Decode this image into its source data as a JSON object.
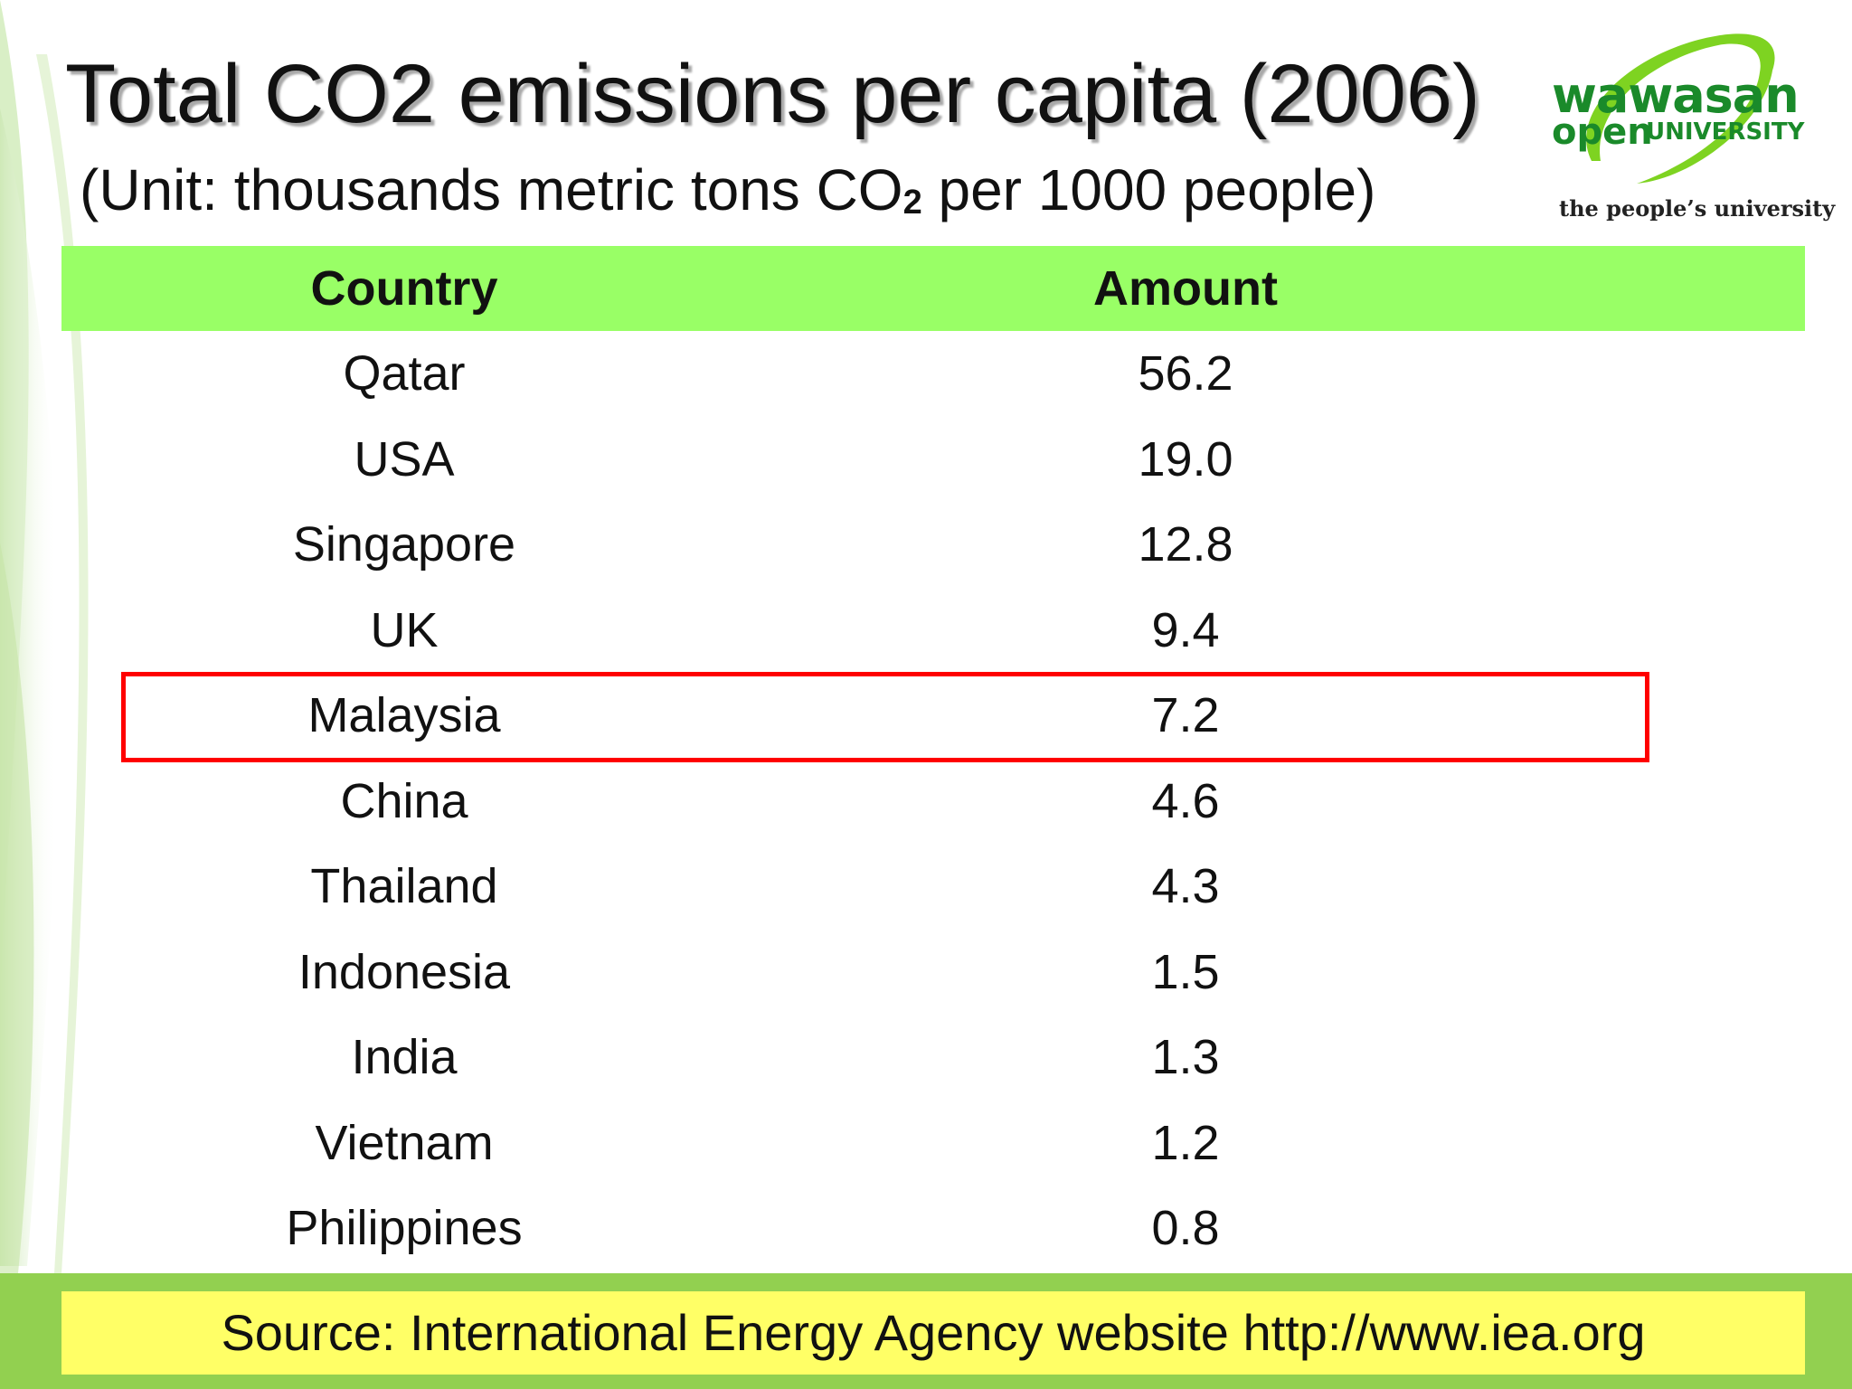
{
  "slide": {
    "title": "Total CO2 emissions per capita (2006)",
    "subtitle_before": "(Unit: thousands metric tons CO",
    "subtitle_sub": "2",
    "subtitle_after": " per 1000 people)",
    "source": "Source: International Energy Agency website http://www.iea.org"
  },
  "logo": {
    "word1": "wawasan",
    "word2": "open",
    "word3": "UNIVERSITY",
    "tagline": "the people’s university"
  },
  "colors": {
    "header_bg": "#99ff66",
    "highlight_border": "#ff0000",
    "source_bg": "#ffff66",
    "footer_band": "#92d050",
    "logo_green": "#1a8a2a"
  },
  "chart_data": {
    "type": "table",
    "columns": [
      "Country",
      "Amount"
    ],
    "rows": [
      [
        "Qatar",
        "56.2"
      ],
      [
        "USA",
        "19.0"
      ],
      [
        "Singapore",
        "12.8"
      ],
      [
        "UK",
        "9.4"
      ],
      [
        "Malaysia",
        "7.2"
      ],
      [
        "China",
        "4.6"
      ],
      [
        "Thailand",
        "4.3"
      ],
      [
        "Indonesia",
        "1.5"
      ],
      [
        "India",
        "1.3"
      ],
      [
        "Vietnam",
        "1.2"
      ],
      [
        "Philippines",
        "0.8"
      ]
    ],
    "highlighted_row": "Malaysia"
  }
}
